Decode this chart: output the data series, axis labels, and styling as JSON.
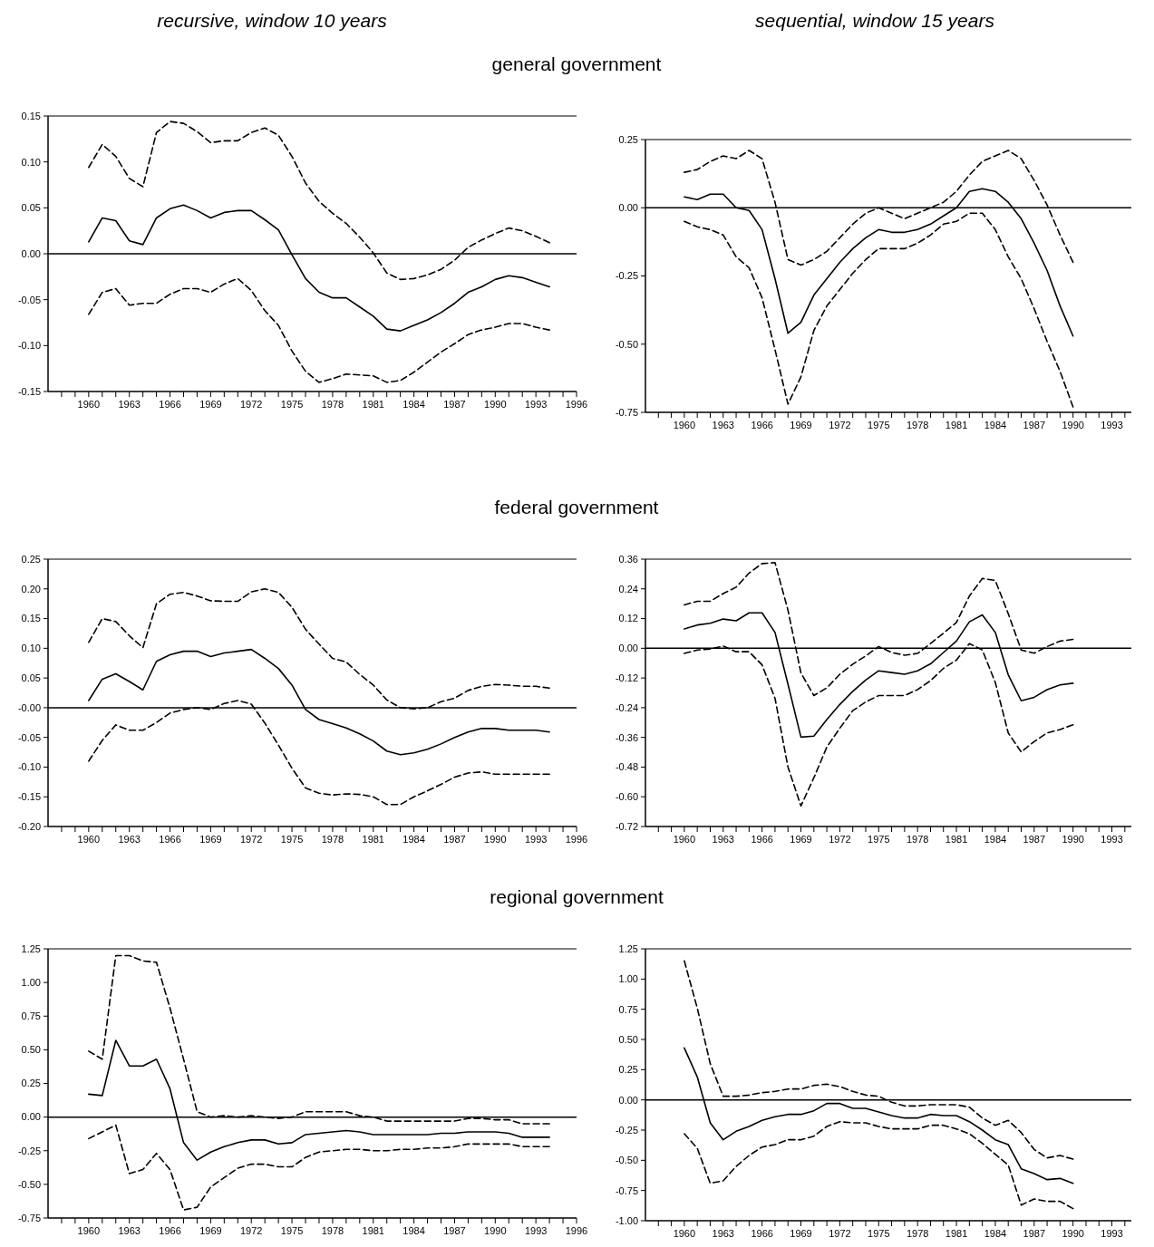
{
  "chart_data": [
    {
      "type": "line",
      "title": "general government",
      "subtitle": "recursive, window 10 years",
      "xlim": [
        1957,
        1996
      ],
      "ylim": [
        -0.15,
        0.15
      ],
      "yticks": [
        {
          "value": 0.15,
          "label": "0.15"
        },
        {
          "value": 0.1,
          "label": "0.10"
        },
        {
          "value": 0.05,
          "label": "0.05"
        },
        {
          "value": 0,
          "label": "0.00"
        },
        {
          "value": -0.05,
          "label": "-0.05"
        },
        {
          "value": -0.1,
          "label": "-0.10"
        },
        {
          "value": -0.15,
          "label": "-0.15"
        }
      ],
      "xticks": [
        {
          "value": 1958,
          "label": null
        },
        {
          "value": 1959,
          "label": null
        },
        1960,
        {
          "value": 1961,
          "label": null
        },
        {
          "value": 1962,
          "label": null
        },
        1963,
        {
          "value": 1964,
          "label": null
        },
        {
          "value": 1965,
          "label": null
        },
        1966,
        {
          "value": 1967,
          "label": null
        },
        {
          "value": 1968,
          "label": null
        },
        1969,
        {
          "value": 1970,
          "label": null
        },
        {
          "value": 1971,
          "label": null
        },
        1972,
        {
          "value": 1973,
          "label": null
        },
        {
          "value": 1974,
          "label": null
        },
        1975,
        {
          "value": 1976,
          "label": null
        },
        {
          "value": 1977,
          "label": null
        },
        1978,
        {
          "value": 1979,
          "label": null
        },
        {
          "value": 1980,
          "label": null
        },
        1981,
        {
          "value": 1982,
          "label": null
        },
        {
          "value": 1983,
          "label": null
        },
        1984,
        {
          "value": 1985,
          "label": null
        },
        {
          "value": 1986,
          "label": null
        },
        1987,
        {
          "value": 1988,
          "label": null
        },
        {
          "value": 1989,
          "label": null
        },
        1990,
        {
          "value": 1991,
          "label": null
        },
        {
          "value": 1992,
          "label": null
        },
        1993,
        {
          "value": 1994,
          "label": null
        },
        {
          "value": 1995,
          "label": null
        },
        1996
      ],
      "x": [
        1960,
        1961,
        1962,
        1963,
        1964,
        1965,
        1966,
        1967,
        1968,
        1969,
        1970,
        1971,
        1972,
        1973,
        1974,
        1975,
        1976,
        1977,
        1978,
        1979,
        1980,
        1981,
        1982,
        1983,
        1984,
        1985,
        1986,
        1987,
        1988,
        1989,
        1990,
        1991,
        1992,
        1993,
        1994
      ],
      "ref_lines": [
        {
          "axis": "y",
          "value": 0
        }
      ],
      "series": [
        {
          "color": "#000000",
          "line_style": "solid",
          "values": [
            0.013,
            0.039,
            0.036,
            0.014,
            0.01,
            0.039,
            0.049,
            0.053,
            0.047,
            0.039,
            0.045,
            0.047,
            0.047,
            0.037,
            0.026,
            -0.001,
            -0.027,
            -0.042,
            -0.048,
            -0.048,
            -0.058,
            -0.068,
            -0.082,
            -0.084,
            -0.078,
            -0.072,
            -0.064,
            -0.054,
            -0.042,
            -0.036,
            -0.028,
            -0.024,
            -0.026,
            -0.031,
            -0.036
          ]
        },
        {
          "color": "#000000",
          "line_style": "dashed",
          "values": [
            0.094,
            0.119,
            0.106,
            0.082,
            0.073,
            0.132,
            0.144,
            0.142,
            0.133,
            0.121,
            0.123,
            0.123,
            0.132,
            0.137,
            0.129,
            0.106,
            0.077,
            0.057,
            0.044,
            0.033,
            0.018,
            0.001,
            -0.021,
            -0.028,
            -0.027,
            -0.023,
            -0.017,
            -0.007,
            0.007,
            0.015,
            0.022,
            0.028,
            0.025,
            0.019,
            0.012
          ]
        },
        {
          "color": "#000000",
          "line_style": "dashed",
          "values": [
            -0.066,
            -0.042,
            -0.038,
            -0.056,
            -0.054,
            -0.054,
            -0.044,
            -0.038,
            -0.038,
            -0.042,
            -0.033,
            -0.027,
            -0.04,
            -0.062,
            -0.078,
            -0.106,
            -0.128,
            -0.14,
            -0.136,
            -0.131,
            -0.132,
            -0.133,
            -0.14,
            -0.138,
            -0.129,
            -0.118,
            -0.107,
            -0.098,
            -0.088,
            -0.083,
            -0.08,
            -0.076,
            -0.076,
            -0.08,
            -0.083
          ]
        }
      ]
    },
    {
      "type": "line",
      "subtitle": "sequential, window 15 years",
      "xlim": [
        1957,
        1994.5
      ],
      "ylim": [
        -0.75,
        0.25
      ],
      "yticks": [
        {
          "value": 0.25,
          "label": "0.25"
        },
        {
          "value": 0,
          "label": "0.00"
        },
        {
          "value": -0.25,
          "label": "-0.25"
        },
        {
          "value": -0.5,
          "label": "-0.50"
        },
        {
          "value": -0.75,
          "label": "-0.75"
        }
      ],
      "xticks": [
        {
          "value": 1958,
          "label": null
        },
        {
          "value": 1959,
          "label": null
        },
        1960,
        {
          "value": 1961,
          "label": null
        },
        {
          "value": 1962,
          "label": null
        },
        1963,
        {
          "value": 1964,
          "label": null
        },
        {
          "value": 1965,
          "label": null
        },
        1966,
        {
          "value": 1967,
          "label": null
        },
        {
          "value": 1968,
          "label": null
        },
        1969,
        {
          "value": 1970,
          "label": null
        },
        {
          "value": 1971,
          "label": null
        },
        1972,
        {
          "value": 1973,
          "label": null
        },
        {
          "value": 1974,
          "label": null
        },
        1975,
        {
          "value": 1976,
          "label": null
        },
        {
          "value": 1977,
          "label": null
        },
        1978,
        {
          "value": 1979,
          "label": null
        },
        {
          "value": 1980,
          "label": null
        },
        1981,
        {
          "value": 1982,
          "label": null
        },
        {
          "value": 1983,
          "label": null
        },
        1984,
        {
          "value": 1985,
          "label": null
        },
        {
          "value": 1986,
          "label": null
        },
        1987,
        {
          "value": 1988,
          "label": null
        },
        {
          "value": 1989,
          "label": null
        },
        1990,
        {
          "value": 1991,
          "label": null
        },
        {
          "value": 1992,
          "label": null
        },
        1993,
        {
          "value": 1994,
          "label": null
        }
      ],
      "x": [
        1960,
        1961,
        1962,
        1963,
        1964,
        1965,
        1966,
        1967,
        1968,
        1969,
        1970,
        1971,
        1972,
        1973,
        1974,
        1975,
        1976,
        1977,
        1978,
        1979,
        1980,
        1981,
        1982,
        1983,
        1984,
        1985,
        1986,
        1987,
        1988,
        1989,
        1990
      ],
      "ref_lines": [
        {
          "axis": "y",
          "value": 0
        }
      ],
      "series": [
        {
          "color": "#000000",
          "line_style": "solid",
          "values": [
            0.04,
            0.03,
            0.05,
            0.05,
            0.0,
            -0.01,
            -0.08,
            -0.26,
            -0.46,
            -0.42,
            -0.32,
            -0.26,
            -0.2,
            -0.15,
            -0.11,
            -0.08,
            -0.09,
            -0.09,
            -0.08,
            -0.06,
            -0.03,
            0.0,
            0.06,
            0.07,
            0.06,
            0.02,
            -0.04,
            -0.13,
            -0.23,
            -0.36,
            -0.47
          ]
        },
        {
          "color": "#000000",
          "line_style": "dashed",
          "values": [
            0.13,
            0.14,
            0.17,
            0.19,
            0.18,
            0.21,
            0.18,
            0.02,
            -0.19,
            -0.21,
            -0.19,
            -0.16,
            -0.11,
            -0.06,
            -0.02,
            0.0,
            -0.02,
            -0.04,
            -0.02,
            0.0,
            0.02,
            0.06,
            0.12,
            0.17,
            0.19,
            0.21,
            0.18,
            0.1,
            0.01,
            -0.1,
            -0.2
          ]
        },
        {
          "color": "#000000",
          "line_style": "dashed",
          "values": [
            -0.05,
            -0.07,
            -0.08,
            -0.1,
            -0.18,
            -0.22,
            -0.33,
            -0.52,
            -0.72,
            -0.62,
            -0.45,
            -0.36,
            -0.3,
            -0.24,
            -0.19,
            -0.15,
            -0.15,
            -0.15,
            -0.13,
            -0.1,
            -0.06,
            -0.05,
            -0.02,
            -0.02,
            -0.08,
            -0.18,
            -0.26,
            -0.37,
            -0.49,
            -0.6,
            -0.73
          ]
        }
      ]
    },
    {
      "type": "line",
      "title": "federal government",
      "xlim": [
        1957,
        1996
      ],
      "ylim": [
        -0.2,
        0.25
      ],
      "yticks": [
        {
          "value": 0.25,
          "label": "0.25"
        },
        {
          "value": 0.2,
          "label": "0.20"
        },
        {
          "value": 0.15,
          "label": "0.15"
        },
        {
          "value": 0.1,
          "label": "0.10"
        },
        {
          "value": 0.05,
          "label": "0.05"
        },
        {
          "value": 0,
          "label": "-0.00"
        },
        {
          "value": -0.05,
          "label": "-0.05"
        },
        {
          "value": -0.1,
          "label": "-0.10"
        },
        {
          "value": -0.15,
          "label": "-0.15"
        },
        {
          "value": -0.2,
          "label": "-0.20"
        }
      ],
      "xticks": [
        {
          "value": 1958,
          "label": null
        },
        {
          "value": 1959,
          "label": null
        },
        1960,
        {
          "value": 1961,
          "label": null
        },
        {
          "value": 1962,
          "label": null
        },
        1963,
        {
          "value": 1964,
          "label": null
        },
        {
          "value": 1965,
          "label": null
        },
        1966,
        {
          "value": 1967,
          "label": null
        },
        {
          "value": 1968,
          "label": null
        },
        1969,
        {
          "value": 1970,
          "label": null
        },
        {
          "value": 1971,
          "label": null
        },
        1972,
        {
          "value": 1973,
          "label": null
        },
        {
          "value": 1974,
          "label": null
        },
        1975,
        {
          "value": 1976,
          "label": null
        },
        {
          "value": 1977,
          "label": null
        },
        1978,
        {
          "value": 1979,
          "label": null
        },
        {
          "value": 1980,
          "label": null
        },
        1981,
        {
          "value": 1982,
          "label": null
        },
        {
          "value": 1983,
          "label": null
        },
        1984,
        {
          "value": 1985,
          "label": null
        },
        {
          "value": 1986,
          "label": null
        },
        1987,
        {
          "value": 1988,
          "label": null
        },
        {
          "value": 1989,
          "label": null
        },
        1990,
        {
          "value": 1991,
          "label": null
        },
        {
          "value": 1992,
          "label": null
        },
        1993,
        {
          "value": 1994,
          "label": null
        },
        {
          "value": 1995,
          "label": null
        },
        1996
      ],
      "x": [
        1960,
        1961,
        1962,
        1963,
        1964,
        1965,
        1966,
        1967,
        1968,
        1969,
        1970,
        1971,
        1972,
        1973,
        1974,
        1975,
        1976,
        1977,
        1978,
        1979,
        1980,
        1981,
        1982,
        1983,
        1984,
        1985,
        1986,
        1987,
        1988,
        1989,
        1990,
        1991,
        1992,
        1993,
        1994
      ],
      "ref_lines": [
        {
          "axis": "y",
          "value": 0
        }
      ],
      "series": [
        {
          "color": "#000000",
          "line_style": "solid",
          "values": [
            0.012,
            0.048,
            0.057,
            0.044,
            0.03,
            0.078,
            0.089,
            0.095,
            0.095,
            0.086,
            0.092,
            0.095,
            0.098,
            0.083,
            0.066,
            0.038,
            -0.003,
            -0.02,
            -0.027,
            -0.034,
            -0.044,
            -0.056,
            -0.073,
            -0.079,
            -0.076,
            -0.07,
            -0.061,
            -0.05,
            -0.041,
            -0.035,
            -0.035,
            -0.038,
            -0.038,
            -0.038,
            -0.041
          ]
        },
        {
          "color": "#000000",
          "line_style": "dashed",
          "values": [
            0.11,
            0.15,
            0.145,
            0.121,
            0.101,
            0.175,
            0.191,
            0.194,
            0.188,
            0.18,
            0.179,
            0.179,
            0.195,
            0.2,
            0.194,
            0.169,
            0.132,
            0.107,
            0.083,
            0.077,
            0.056,
            0.038,
            0.013,
            0.0,
            -0.002,
            0.0,
            0.01,
            0.016,
            0.029,
            0.036,
            0.039,
            0.038,
            0.036,
            0.036,
            0.033
          ]
        },
        {
          "color": "#000000",
          "line_style": "dashed",
          "values": [
            -0.09,
            -0.055,
            -0.029,
            -0.038,
            -0.038,
            -0.025,
            -0.009,
            -0.003,
            0.0,
            -0.003,
            0.007,
            0.012,
            0.006,
            -0.026,
            -0.063,
            -0.102,
            -0.135,
            -0.144,
            -0.147,
            -0.145,
            -0.146,
            -0.15,
            -0.163,
            -0.163,
            -0.15,
            -0.14,
            -0.129,
            -0.117,
            -0.11,
            -0.108,
            -0.112,
            -0.112,
            -0.112,
            -0.112,
            -0.112
          ]
        }
      ]
    },
    {
      "type": "line",
      "xlim": [
        1957,
        1994.5
      ],
      "ylim": [
        -0.72,
        0.36
      ],
      "yticks": [
        {
          "value": 0.36,
          "label": "0.36"
        },
        {
          "value": 0.24,
          "label": "0.24"
        },
        {
          "value": 0.12,
          "label": "0.12"
        },
        {
          "value": 0,
          "label": "0.00"
        },
        {
          "value": -0.12,
          "label": "-0.12"
        },
        {
          "value": -0.24,
          "label": "-0.24"
        },
        {
          "value": -0.36,
          "label": "-0.36"
        },
        {
          "value": -0.48,
          "label": "-0.48"
        },
        {
          "value": -0.6,
          "label": "-0.60"
        },
        {
          "value": -0.72,
          "label": "-0.72"
        }
      ],
      "xticks": [
        {
          "value": 1958,
          "label": null
        },
        {
          "value": 1959,
          "label": null
        },
        1960,
        {
          "value": 1961,
          "label": null
        },
        {
          "value": 1962,
          "label": null
        },
        1963,
        {
          "value": 1964,
          "label": null
        },
        {
          "value": 1965,
          "label": null
        },
        1966,
        {
          "value": 1967,
          "label": null
        },
        {
          "value": 1968,
          "label": null
        },
        1969,
        {
          "value": 1970,
          "label": null
        },
        {
          "value": 1971,
          "label": null
        },
        1972,
        {
          "value": 1973,
          "label": null
        },
        {
          "value": 1974,
          "label": null
        },
        1975,
        {
          "value": 1976,
          "label": null
        },
        {
          "value": 1977,
          "label": null
        },
        1978,
        {
          "value": 1979,
          "label": null
        },
        {
          "value": 1980,
          "label": null
        },
        1981,
        {
          "value": 1982,
          "label": null
        },
        {
          "value": 1983,
          "label": null
        },
        1984,
        {
          "value": 1985,
          "label": null
        },
        {
          "value": 1986,
          "label": null
        },
        1987,
        {
          "value": 1988,
          "label": null
        },
        {
          "value": 1989,
          "label": null
        },
        1990,
        {
          "value": 1991,
          "label": null
        },
        {
          "value": 1992,
          "label": null
        },
        1993,
        {
          "value": 1994,
          "label": null
        }
      ],
      "x": [
        1960,
        1961,
        1962,
        1963,
        1964,
        1965,
        1966,
        1967,
        1968,
        1969,
        1970,
        1971,
        1972,
        1973,
        1974,
        1975,
        1976,
        1977,
        1978,
        1979,
        1980,
        1981,
        1982,
        1983,
        1984,
        1985,
        1986,
        1987,
        1988,
        1989,
        1990
      ],
      "ref_lines": [
        {
          "axis": "y",
          "value": 0
        }
      ],
      "series": [
        {
          "color": "#000000",
          "line_style": "solid",
          "values": [
            0.078,
            0.094,
            0.101,
            0.118,
            0.111,
            0.143,
            0.143,
            0.064,
            -0.145,
            -0.359,
            -0.355,
            -0.288,
            -0.227,
            -0.174,
            -0.128,
            -0.091,
            -0.098,
            -0.105,
            -0.091,
            -0.063,
            -0.017,
            0.029,
            0.107,
            0.135,
            0.064,
            -0.107,
            -0.212,
            -0.198,
            -0.167,
            -0.148,
            -0.141
          ]
        },
        {
          "color": "#000000",
          "line_style": "dashed",
          "values": [
            0.175,
            0.19,
            0.19,
            0.221,
            0.247,
            0.304,
            0.342,
            0.346,
            0.154,
            -0.1,
            -0.191,
            -0.16,
            -0.105,
            -0.064,
            -0.031,
            0.007,
            -0.017,
            -0.028,
            -0.021,
            0.019,
            0.061,
            0.104,
            0.211,
            0.282,
            0.274,
            0.14,
            -0.007,
            -0.02,
            0.007,
            0.029,
            0.036
          ]
        },
        {
          "color": "#000000",
          "line_style": "dashed",
          "values": [
            -0.021,
            -0.007,
            -0.003,
            0.009,
            -0.014,
            -0.014,
            -0.067,
            -0.202,
            -0.48,
            -0.637,
            -0.523,
            -0.399,
            -0.323,
            -0.252,
            -0.217,
            -0.191,
            -0.191,
            -0.191,
            -0.167,
            -0.131,
            -0.081,
            -0.048,
            0.019,
            -0.007,
            -0.138,
            -0.342,
            -0.419,
            -0.377,
            -0.342,
            -0.328,
            -0.309
          ]
        }
      ]
    },
    {
      "type": "line",
      "title": "regional government",
      "xlim": [
        1957,
        1996
      ],
      "ylim": [
        -0.75,
        1.25
      ],
      "yticks": [
        {
          "value": 1.25,
          "label": "1.25"
        },
        {
          "value": 1,
          "label": "1.00"
        },
        {
          "value": 0.75,
          "label": "0.75"
        },
        {
          "value": 0.5,
          "label": "0.50"
        },
        {
          "value": 0.25,
          "label": "0.25"
        },
        {
          "value": 0,
          "label": "0.00"
        },
        {
          "value": -0.25,
          "label": "-0.25"
        },
        {
          "value": -0.5,
          "label": "-0.50"
        },
        {
          "value": -0.75,
          "label": "-0.75"
        }
      ],
      "xticks": [
        {
          "value": 1958,
          "label": null
        },
        {
          "value": 1959,
          "label": null
        },
        1960,
        {
          "value": 1961,
          "label": null
        },
        {
          "value": 1962,
          "label": null
        },
        1963,
        {
          "value": 1964,
          "label": null
        },
        {
          "value": 1965,
          "label": null
        },
        1966,
        {
          "value": 1967,
          "label": null
        },
        {
          "value": 1968,
          "label": null
        },
        1969,
        {
          "value": 1970,
          "label": null
        },
        {
          "value": 1971,
          "label": null
        },
        1972,
        {
          "value": 1973,
          "label": null
        },
        {
          "value": 1974,
          "label": null
        },
        1975,
        {
          "value": 1976,
          "label": null
        },
        {
          "value": 1977,
          "label": null
        },
        1978,
        {
          "value": 1979,
          "label": null
        },
        {
          "value": 1980,
          "label": null
        },
        1981,
        {
          "value": 1982,
          "label": null
        },
        {
          "value": 1983,
          "label": null
        },
        1984,
        {
          "value": 1985,
          "label": null
        },
        {
          "value": 1986,
          "label": null
        },
        1987,
        {
          "value": 1988,
          "label": null
        },
        {
          "value": 1989,
          "label": null
        },
        1990,
        {
          "value": 1991,
          "label": null
        },
        {
          "value": 1992,
          "label": null
        },
        1993,
        {
          "value": 1994,
          "label": null
        },
        {
          "value": 1995,
          "label": null
        },
        1996
      ],
      "x": [
        1960,
        1961,
        1962,
        1963,
        1964,
        1965,
        1966,
        1967,
        1968,
        1969,
        1970,
        1971,
        1972,
        1973,
        1974,
        1975,
        1976,
        1977,
        1978,
        1979,
        1980,
        1981,
        1982,
        1983,
        1984,
        1985,
        1986,
        1987,
        1988,
        1989,
        1990,
        1991,
        1992,
        1993,
        1994
      ],
      "ref_lines": [
        {
          "axis": "y",
          "value": 0
        }
      ],
      "series": [
        {
          "color": "#000000",
          "line_style": "solid",
          "values": [
            0.17,
            0.16,
            0.57,
            0.38,
            0.38,
            0.43,
            0.21,
            -0.19,
            -0.32,
            -0.26,
            -0.22,
            -0.19,
            -0.17,
            -0.17,
            -0.2,
            -0.19,
            -0.13,
            -0.12,
            -0.11,
            -0.1,
            -0.11,
            -0.13,
            -0.13,
            -0.13,
            -0.13,
            -0.13,
            -0.12,
            -0.12,
            -0.11,
            -0.11,
            -0.11,
            -0.12,
            -0.15,
            -0.15,
            -0.15
          ]
        },
        {
          "color": "#000000",
          "line_style": "dashed",
          "values": [
            0.49,
            0.43,
            1.2,
            1.2,
            1.16,
            1.15,
            0.81,
            0.43,
            0.04,
            0.0,
            0.01,
            0.0,
            0.01,
            0.0,
            -0.01,
            0.0,
            0.04,
            0.04,
            0.04,
            0.04,
            0.01,
            0.0,
            -0.03,
            -0.03,
            -0.03,
            -0.03,
            -0.03,
            -0.03,
            -0.01,
            -0.01,
            -0.02,
            -0.02,
            -0.05,
            -0.05,
            -0.05
          ]
        },
        {
          "color": "#000000",
          "line_style": "dashed",
          "values": [
            -0.16,
            -0.11,
            -0.06,
            -0.42,
            -0.39,
            -0.27,
            -0.39,
            -0.69,
            -0.67,
            -0.52,
            -0.45,
            -0.38,
            -0.35,
            -0.35,
            -0.37,
            -0.37,
            -0.3,
            -0.26,
            -0.25,
            -0.24,
            -0.24,
            -0.25,
            -0.25,
            -0.24,
            -0.24,
            -0.23,
            -0.23,
            -0.22,
            -0.2,
            -0.2,
            -0.2,
            -0.2,
            -0.22,
            -0.22,
            -0.22
          ]
        }
      ]
    },
    {
      "type": "line",
      "xlim": [
        1957,
        1994.5
      ],
      "ylim": [
        -1,
        1.25
      ],
      "yticks": [
        {
          "value": 1.25,
          "label": "1.25"
        },
        {
          "value": 1,
          "label": "1.00"
        },
        {
          "value": 0.75,
          "label": "0.75"
        },
        {
          "value": 0.5,
          "label": "0.50"
        },
        {
          "value": 0.25,
          "label": "0.25"
        },
        {
          "value": 0,
          "label": "0.00"
        },
        {
          "value": -0.25,
          "label": "-0.25"
        },
        {
          "value": -0.5,
          "label": "-0.50"
        },
        {
          "value": -0.75,
          "label": "-0.75"
        },
        {
          "value": -1,
          "label": "-1.00"
        }
      ],
      "xticks": [
        {
          "value": 1958,
          "label": null
        },
        {
          "value": 1959,
          "label": null
        },
        1960,
        {
          "value": 1961,
          "label": null
        },
        {
          "value": 1962,
          "label": null
        },
        1963,
        {
          "value": 1964,
          "label": null
        },
        {
          "value": 1965,
          "label": null
        },
        1966,
        {
          "value": 1967,
          "label": null
        },
        {
          "value": 1968,
          "label": null
        },
        1969,
        {
          "value": 1970,
          "label": null
        },
        {
          "value": 1971,
          "label": null
        },
        1972,
        {
          "value": 1973,
          "label": null
        },
        {
          "value": 1974,
          "label": null
        },
        1975,
        {
          "value": 1976,
          "label": null
        },
        {
          "value": 1977,
          "label": null
        },
        1978,
        {
          "value": 1979,
          "label": null
        },
        {
          "value": 1980,
          "label": null
        },
        1981,
        {
          "value": 1982,
          "label": null
        },
        {
          "value": 1983,
          "label": null
        },
        1984,
        {
          "value": 1985,
          "label": null
        },
        {
          "value": 1986,
          "label": null
        },
        1987,
        {
          "value": 1988,
          "label": null
        },
        {
          "value": 1989,
          "label": null
        },
        1990,
        {
          "value": 1991,
          "label": null
        },
        {
          "value": 1992,
          "label": null
        },
        1993,
        {
          "value": 1994,
          "label": null
        }
      ],
      "x": [
        1960,
        1961,
        1962,
        1963,
        1964,
        1965,
        1966,
        1967,
        1968,
        1969,
        1970,
        1971,
        1972,
        1973,
        1974,
        1975,
        1976,
        1977,
        1978,
        1979,
        1980,
        1981,
        1982,
        1983,
        1984,
        1985,
        1986,
        1987,
        1988,
        1989,
        1990
      ],
      "ref_lines": [
        {
          "axis": "y",
          "value": 0
        }
      ],
      "series": [
        {
          "color": "#000000",
          "line_style": "solid",
          "values": [
            0.43,
            0.19,
            -0.19,
            -0.33,
            -0.26,
            -0.22,
            -0.17,
            -0.14,
            -0.12,
            -0.12,
            -0.09,
            -0.03,
            -0.03,
            -0.07,
            -0.07,
            -0.1,
            -0.13,
            -0.15,
            -0.15,
            -0.12,
            -0.13,
            -0.13,
            -0.18,
            -0.25,
            -0.33,
            -0.37,
            -0.57,
            -0.61,
            -0.66,
            -0.65,
            -0.69
          ]
        },
        {
          "color": "#000000",
          "line_style": "dashed",
          "values": [
            1.15,
            0.76,
            0.3,
            0.03,
            0.03,
            0.04,
            0.06,
            0.07,
            0.09,
            0.09,
            0.12,
            0.13,
            0.11,
            0.07,
            0.04,
            0.03,
            -0.02,
            -0.05,
            -0.05,
            -0.04,
            -0.04,
            -0.04,
            -0.06,
            -0.15,
            -0.21,
            -0.17,
            -0.27,
            -0.41,
            -0.48,
            -0.46,
            -0.49
          ]
        },
        {
          "color": "#000000",
          "line_style": "dashed",
          "values": [
            -0.28,
            -0.4,
            -0.69,
            -0.67,
            -0.55,
            -0.46,
            -0.39,
            -0.37,
            -0.33,
            -0.33,
            -0.3,
            -0.22,
            -0.18,
            -0.19,
            -0.19,
            -0.22,
            -0.24,
            -0.24,
            -0.24,
            -0.21,
            -0.21,
            -0.24,
            -0.28,
            -0.36,
            -0.45,
            -0.54,
            -0.87,
            -0.82,
            -0.84,
            -0.84,
            -0.9
          ]
        }
      ]
    }
  ]
}
